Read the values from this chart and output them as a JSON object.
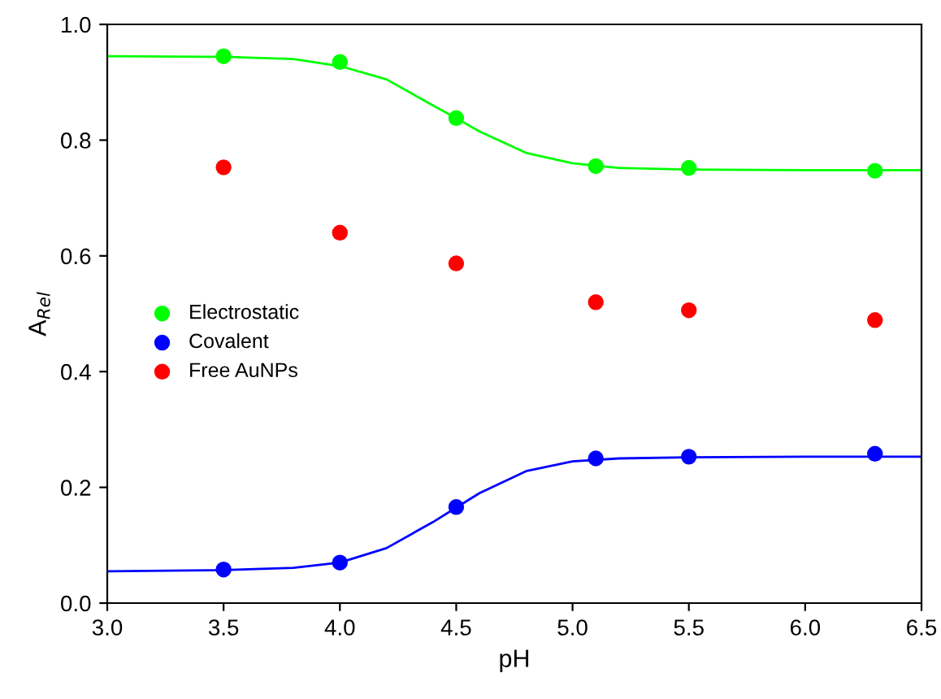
{
  "chart_data": {
    "type": "scatter",
    "xlabel": "pH",
    "ylabel": "A$_{Rel}$",
    "xlim": [
      3.0,
      6.5
    ],
    "ylim": [
      0.0,
      1.0
    ],
    "xticks": [
      {
        "value": 3.0,
        "label": "3.0"
      },
      {
        "value": 3.5,
        "label": "3.5"
      },
      {
        "value": 4.0,
        "label": "4.0"
      },
      {
        "value": 4.5,
        "label": "4.5"
      },
      {
        "value": 5.0,
        "label": "5.0"
      },
      {
        "value": 5.5,
        "label": "5.5"
      },
      {
        "value": 6.0,
        "label": "6.0"
      },
      {
        "value": 6.5,
        "label": "6.5"
      }
    ],
    "yticks": [
      {
        "value": 0.0,
        "label": "0.0"
      },
      {
        "value": 0.2,
        "label": "0.2"
      },
      {
        "value": 0.4,
        "label": "0.4"
      },
      {
        "value": 0.6,
        "label": "0.6"
      },
      {
        "value": 0.8,
        "label": "0.8"
      },
      {
        "value": 1.0,
        "label": "1.0"
      }
    ],
    "grid": false,
    "legend": "left",
    "series": [
      {
        "name": "Electrostatic",
        "marker": "circle",
        "color": "#00ff00",
        "x": [
          3.5,
          4.0,
          4.5,
          5.1,
          5.5,
          6.3
        ],
        "values": [
          0.945,
          0.935,
          0.838,
          0.755,
          0.752,
          0.747
        ]
      },
      {
        "name": "Covalent",
        "marker": "circle",
        "color": "#0000ff",
        "x": [
          3.5,
          4.0,
          4.5,
          5.1,
          5.5,
          6.3
        ],
        "values": [
          0.058,
          0.07,
          0.166,
          0.25,
          0.253,
          0.258
        ]
      },
      {
        "name": "Free AuNPs",
        "marker": "circle",
        "color": "#ff0000",
        "x": [
          3.5,
          4.0,
          4.5,
          5.1,
          5.5,
          6.3
        ],
        "values": [
          0.753,
          0.64,
          0.587,
          0.52,
          0.506,
          0.489
        ]
      },
      {
        "type": "line",
        "marker": "none",
        "color": "#00ff00",
        "x": [
          3.0,
          3.5,
          3.8,
          4.0,
          4.2,
          4.4,
          4.5,
          4.6,
          4.8,
          5.0,
          5.2,
          5.5,
          6.0,
          6.5
        ],
        "values": [
          0.945,
          0.944,
          0.94,
          0.928,
          0.905,
          0.86,
          0.838,
          0.815,
          0.778,
          0.76,
          0.752,
          0.749,
          0.748,
          0.748
        ]
      },
      {
        "type": "line",
        "marker": "none",
        "color": "#0000ff",
        "x": [
          3.0,
          3.5,
          3.8,
          4.0,
          4.2,
          4.4,
          4.5,
          4.6,
          4.8,
          5.0,
          5.2,
          5.5,
          6.0,
          6.5
        ],
        "values": [
          0.055,
          0.057,
          0.061,
          0.07,
          0.095,
          0.14,
          0.165,
          0.19,
          0.228,
          0.245,
          0.25,
          0.252,
          0.253,
          0.253
        ]
      }
    ]
  }
}
